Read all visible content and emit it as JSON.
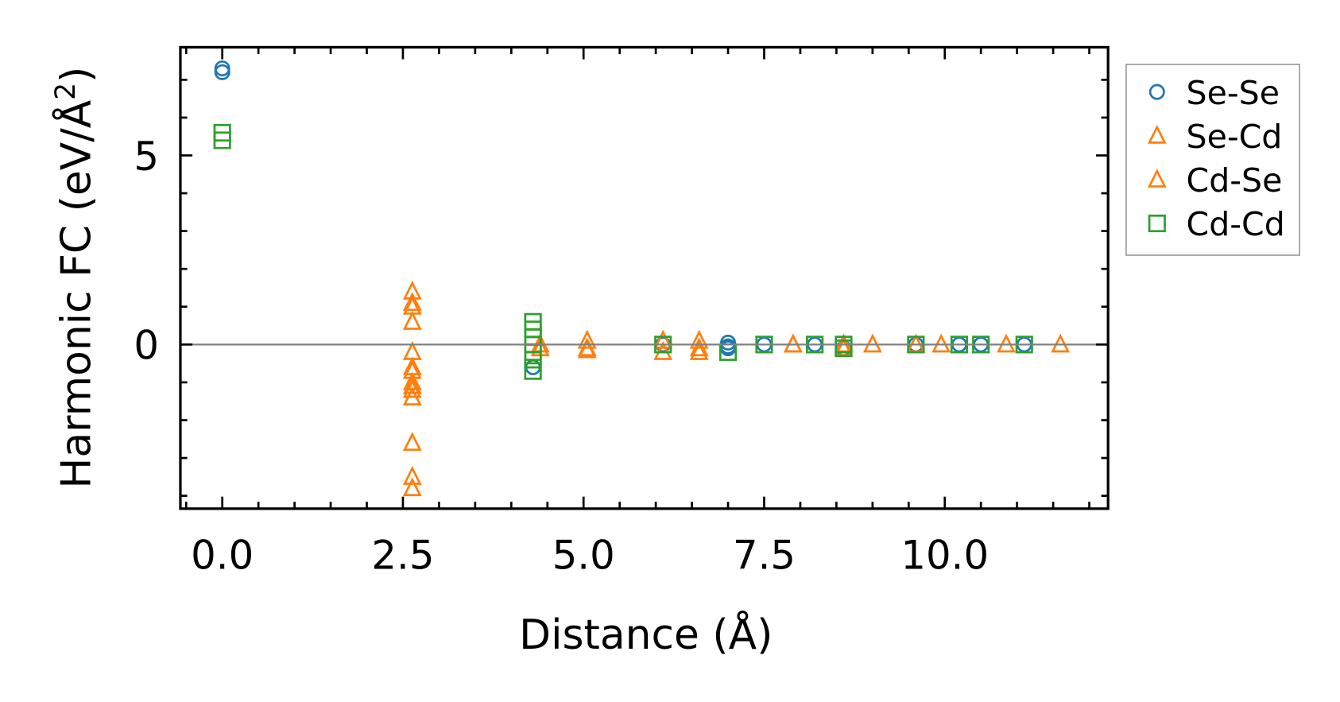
{
  "chart_data": {
    "type": "scatter",
    "title": "",
    "xlabel": "Distance (Å)",
    "ylabel": "Harmonic FC (eV/Å²)",
    "ylabel_main": "Harmonic FC (eV/Å",
    "ylabel_sup": "2",
    "ylabel_end": ")",
    "xlim": [
      -0.58,
      12.26
    ],
    "ylim": [
      -4.34,
      7.86
    ],
    "xticks": [
      0.0,
      2.5,
      5.0,
      7.5,
      10.0
    ],
    "xtick_labels": [
      "0.0",
      "2.5",
      "5.0",
      "7.5",
      "10.0"
    ],
    "yticks": [
      0,
      5
    ],
    "ytick_labels": [
      "0",
      "5"
    ],
    "grid": false,
    "zero_line": true,
    "legend_placement": "outside-right",
    "series": [
      {
        "name": "Se-Se",
        "marker": "circle",
        "color": "#1f77b4",
        "x": [
          0,
          0,
          4.3,
          6.1,
          7.0,
          7.0,
          7.0,
          7.5,
          8.2,
          8.6,
          9.6,
          10.2,
          10.5,
          11.1
        ],
        "y": [
          7.3,
          7.2,
          -0.6,
          0.0,
          0.05,
          -0.05,
          -0.1,
          0.0,
          0.0,
          -0.1,
          0.0,
          0.0,
          0.0,
          0.0
        ]
      },
      {
        "name": "Se-Cd",
        "marker": "triangle",
        "color": "#ff7f0e",
        "x": [
          2.63,
          2.63,
          2.63,
          2.63,
          2.63,
          2.63,
          2.63,
          2.63,
          2.63,
          2.63,
          4.4,
          5.05,
          5.05,
          6.1,
          6.6,
          6.6,
          7.9,
          8.6,
          9.0,
          9.95,
          11.6
        ],
        "y": [
          1.4,
          1.1,
          0.6,
          -0.2,
          -0.6,
          -1.0,
          -1.2,
          -2.6,
          -3.5,
          -3.8,
          0.0,
          0.1,
          -0.15,
          0.1,
          0.1,
          -0.2,
          0.0,
          -0.1,
          0.0,
          0.0,
          0.0
        ]
      },
      {
        "name": "Cd-Se",
        "marker": "triangle",
        "color": "#ff7f0e",
        "x": [
          2.63,
          2.63,
          2.63,
          2.63,
          4.4,
          5.05,
          6.1,
          6.6,
          7.9,
          8.6,
          9.6,
          10.85
        ],
        "y": [
          1.0,
          -0.7,
          -1.1,
          -1.4,
          -0.1,
          -0.1,
          -0.2,
          -0.1,
          0.0,
          0.0,
          0.0,
          0.0
        ]
      },
      {
        "name": "Cd-Cd",
        "marker": "square",
        "color": "#2ca02c",
        "x": [
          0,
          0,
          4.3,
          4.3,
          4.3,
          4.3,
          4.3,
          4.3,
          4.3,
          6.1,
          7.0,
          7.5,
          8.2,
          8.6,
          8.6,
          9.6,
          10.2,
          10.5,
          11.1
        ],
        "y": [
          5.6,
          5.4,
          0.6,
          0.4,
          0.2,
          0.0,
          -0.2,
          -0.4,
          -0.7,
          0.0,
          -0.2,
          0.0,
          0.0,
          0.0,
          -0.1,
          0.0,
          0.0,
          0.0,
          0.0
        ]
      }
    ]
  }
}
